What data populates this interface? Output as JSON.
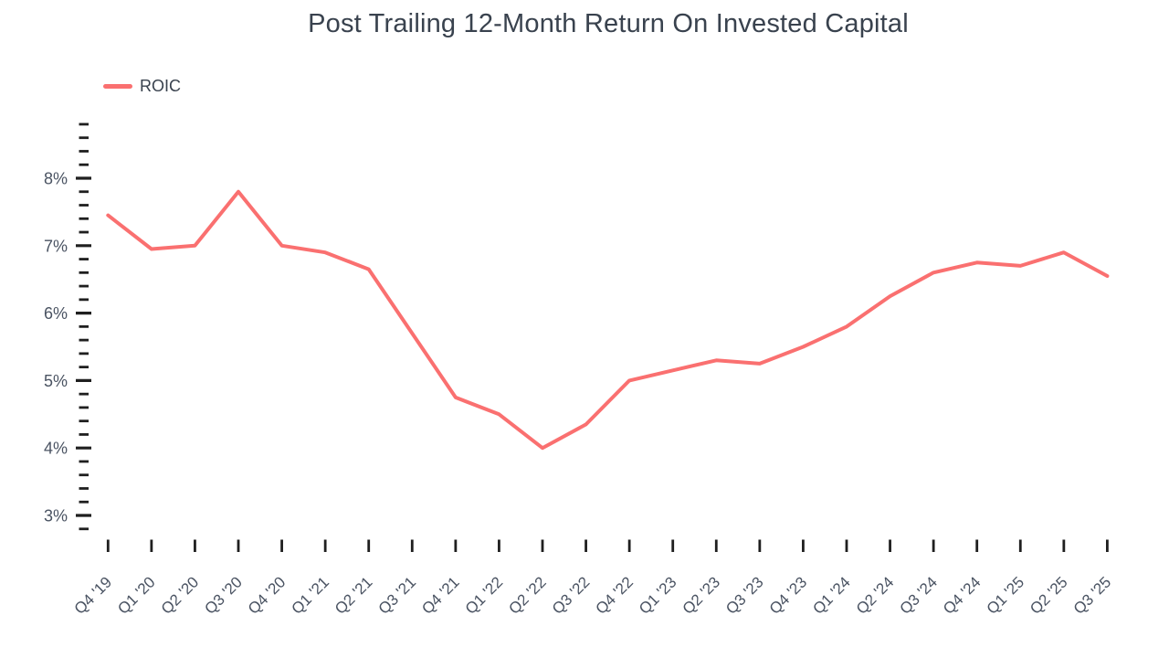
{
  "chart_data": {
    "type": "line",
    "title": "Post Trailing 12-Month Return On Invested Capital",
    "legend_position": "top-left",
    "grid": false,
    "categories": [
      "Q4 '19",
      "Q1 '20",
      "Q2 '20",
      "Q3 '20",
      "Q4 '20",
      "Q1 '21",
      "Q2 '21",
      "Q3 '21",
      "Q4 '21",
      "Q1 '22",
      "Q2 '22",
      "Q3 '22",
      "Q4 '22",
      "Q1 '23",
      "Q2 '23",
      "Q3 '23",
      "Q4 '23",
      "Q1 '24",
      "Q2 '24",
      "Q3 '24",
      "Q4 '24",
      "Q1 '25",
      "Q2 '25",
      "Q3 '25"
    ],
    "series": [
      {
        "name": "ROIC",
        "color": "#fa7070",
        "values": [
          7.45,
          6.95,
          7.0,
          7.8,
          7.0,
          6.9,
          6.65,
          5.7,
          4.75,
          4.5,
          4.0,
          4.35,
          5.0,
          5.15,
          5.3,
          5.25,
          5.5,
          5.8,
          6.25,
          6.6,
          6.75,
          6.7,
          6.9,
          6.55
        ]
      }
    ],
    "y_axis": {
      "unit": "%",
      "major_ticks": [
        {
          "value": 3,
          "label": "3%"
        },
        {
          "value": 4,
          "label": "4%"
        },
        {
          "value": 5,
          "label": "5%"
        },
        {
          "value": 6,
          "label": "6%"
        },
        {
          "value": 7,
          "label": "7%"
        },
        {
          "value": 8,
          "label": "8%"
        }
      ],
      "minor_tick_step": 0.2,
      "ylim": [
        2.8,
        8.8
      ]
    },
    "xlabel": "",
    "ylabel": ""
  },
  "colors": {
    "series_line": "#fa7070",
    "title_text": "#39424e",
    "axis_label_text": "#4a5362",
    "tick_mark": "#1f1f1f"
  }
}
